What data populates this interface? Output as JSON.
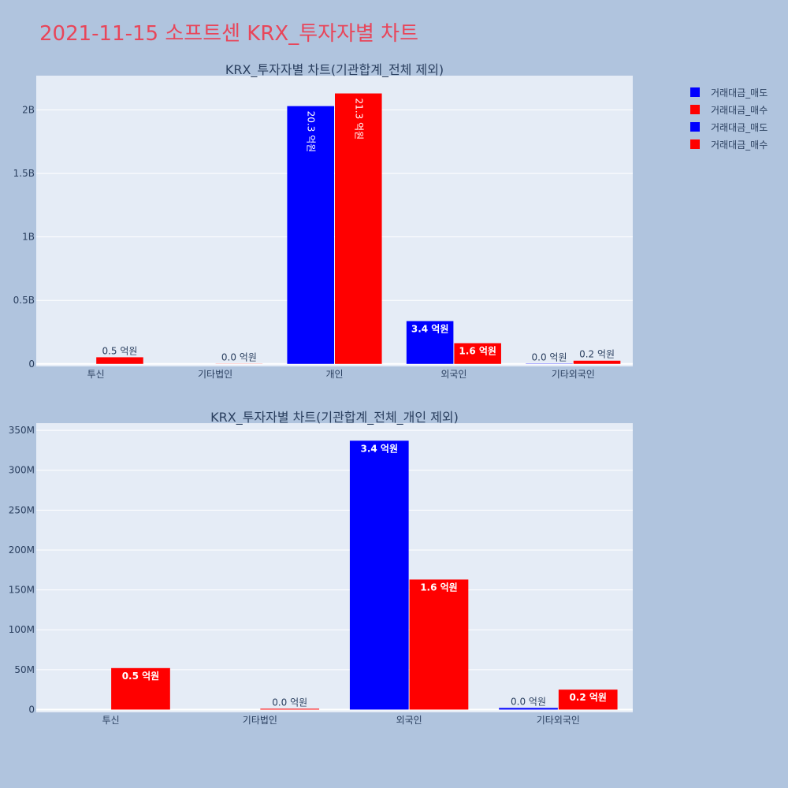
{
  "page_title": "2021-11-15 소프트센 KRX_투자자별 차트",
  "colors": {
    "sell": "#0000ff",
    "buy": "#ff0000",
    "plot_bg": "#e5ecf6",
    "page_bg": "#b0c4de",
    "title": "#e8465a",
    "text": "#2a3f5f"
  },
  "legend": [
    {
      "label": "거래대금_매도",
      "color": "#0000ff"
    },
    {
      "label": "거래대금_매수",
      "color": "#ff0000"
    },
    {
      "label": "거래대금_매도",
      "color": "#0000ff"
    },
    {
      "label": "거래대금_매수",
      "color": "#ff0000"
    }
  ],
  "chart_data": [
    {
      "type": "bar",
      "title": "KRX_투자자별 차트(기관합계_전체 제외)",
      "categories": [
        "투신",
        "기타법인",
        "개인",
        "외국인",
        "기타외국인"
      ],
      "series": [
        {
          "name": "거래대금_매도",
          "values": [
            0,
            0,
            2030000000,
            337000000,
            2000000
          ],
          "labels": [
            "",
            "",
            "20.3 억원",
            "3.4 억원",
            "0.0 억원"
          ]
        },
        {
          "name": "거래대금_매수",
          "values": [
            52000000,
            1000000,
            2130000000,
            163000000,
            25000000
          ],
          "labels": [
            "0.5 억원",
            "0.0 억원",
            "21.3 억원",
            "1.6 억원",
            "0.2 억원"
          ]
        }
      ],
      "yticks": [
        0,
        500000000,
        1000000000,
        1500000000,
        2000000000
      ],
      "ytick_labels": [
        "0",
        "0.5B",
        "1B",
        "1.5B",
        "2B"
      ],
      "ylim": [
        -20000000,
        2270000000
      ],
      "grid": true,
      "legend_position": "top-right"
    },
    {
      "type": "bar",
      "title": "KRX_투자자별 차트(기관합계_전체_개인 제외)",
      "categories": [
        "투신",
        "기타법인",
        "외국인",
        "기타외국인"
      ],
      "series": [
        {
          "name": "거래대금_매도",
          "values": [
            0,
            0,
            337000000,
            2000000
          ],
          "labels": [
            "",
            "",
            "3.4 억원",
            "0.0 억원"
          ]
        },
        {
          "name": "거래대금_매수",
          "values": [
            52000000,
            1000000,
            163000000,
            25000000
          ],
          "labels": [
            "0.5 억원",
            "0.0 억원",
            "1.6 억원",
            "0.2 억원"
          ]
        }
      ],
      "yticks": [
        0,
        50000000,
        100000000,
        150000000,
        200000000,
        250000000,
        300000000,
        350000000
      ],
      "ytick_labels": [
        "0",
        "50M",
        "100M",
        "150M",
        "200M",
        "250M",
        "300M",
        "350M"
      ],
      "ylim": [
        -3500000,
        359000000
      ],
      "grid": true,
      "legend_position": "top-right"
    }
  ]
}
